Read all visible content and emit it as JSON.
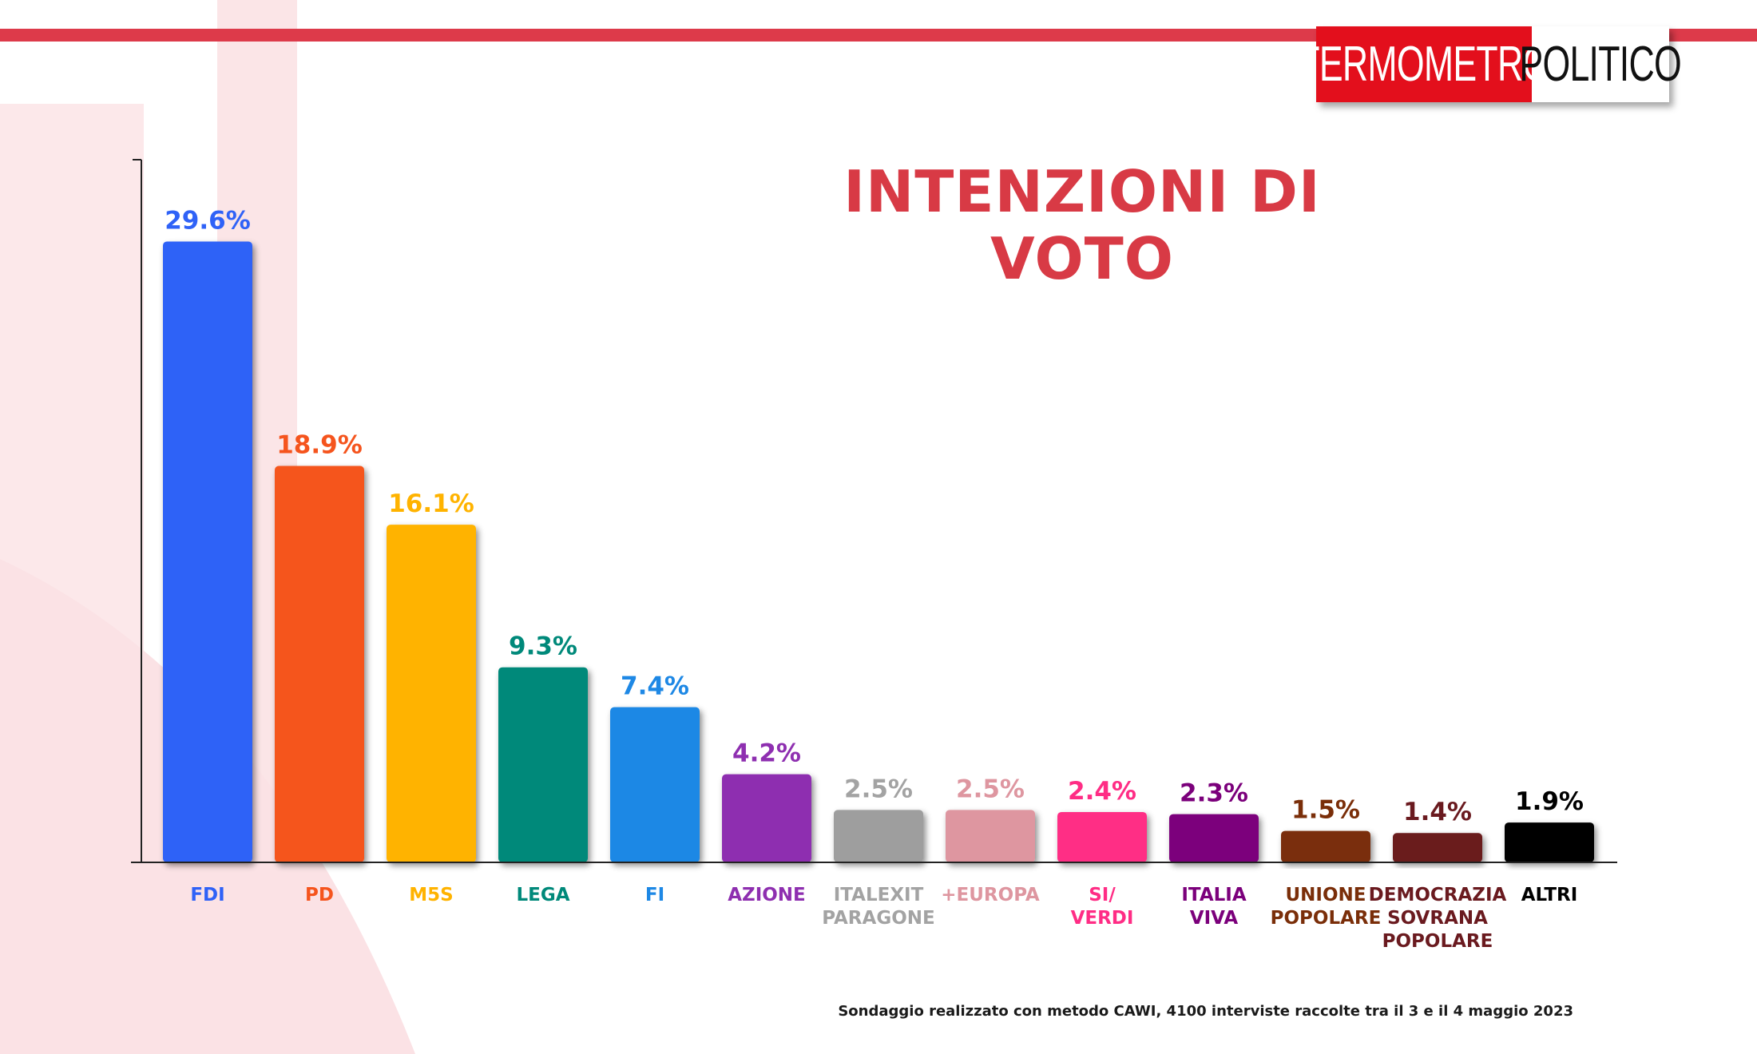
{
  "header": {
    "logo_part1": "TERMOMETRO",
    "logo_part2": "POLITICO"
  },
  "footnote": "Sondaggio realizzato con metodo CAWI, 4100 interviste raccolte tra il 3 e il 4 maggio 2023",
  "chart_data": {
    "type": "bar",
    "title": "INTENZIONI DI VOTO",
    "xlabel": "",
    "ylabel": "",
    "ylim": [
      0,
      33.5
    ],
    "grid": false,
    "legend": "none",
    "categories": [
      [
        "FDI"
      ],
      [
        "PD"
      ],
      [
        "M5S"
      ],
      [
        "LEGA"
      ],
      [
        "FI"
      ],
      [
        "AZIONE"
      ],
      [
        "ITALEXIT",
        "PARAGONE"
      ],
      [
        "+EUROPA"
      ],
      [
        "SI/",
        "VERDI"
      ],
      [
        "ITALIA",
        "VIVA"
      ],
      [
        "UNIONE",
        "POPOLARE"
      ],
      [
        "DEMOCRAZIA",
        "SOVRANA",
        "POPOLARE"
      ],
      [
        "ALTRI"
      ]
    ],
    "values": [
      29.6,
      18.9,
      16.1,
      9.3,
      7.4,
      4.2,
      2.5,
      2.5,
      2.4,
      2.3,
      1.5,
      1.4,
      1.9
    ],
    "value_labels": [
      "29.6%",
      "18.9%",
      "16.1%",
      "9.3%",
      "7.4%",
      "4.2%",
      "2.5%",
      "2.5%",
      "2.4%",
      "2.3%",
      "1.5%",
      "1.4%",
      "1.9%"
    ],
    "bar_colors": [
      "#2f62f7",
      "#f5541d",
      "#ffb300",
      "#00897a",
      "#1e88e5",
      "#8e2fb0",
      "#9e9e9e",
      "#de96a0",
      "#ff2d85",
      "#7b007b",
      "#7a2e09",
      "#6a1a1f",
      "#000000"
    ],
    "label_colors": [
      "#2f62f7",
      "#f5541d",
      "#ffb300",
      "#00897a",
      "#1e88e5",
      "#8e2fb0",
      "#a3a3a3",
      "#de96a0",
      "#ff2d85",
      "#7b007b",
      "#7a2e09",
      "#6a1a1f",
      "#000000"
    ]
  }
}
